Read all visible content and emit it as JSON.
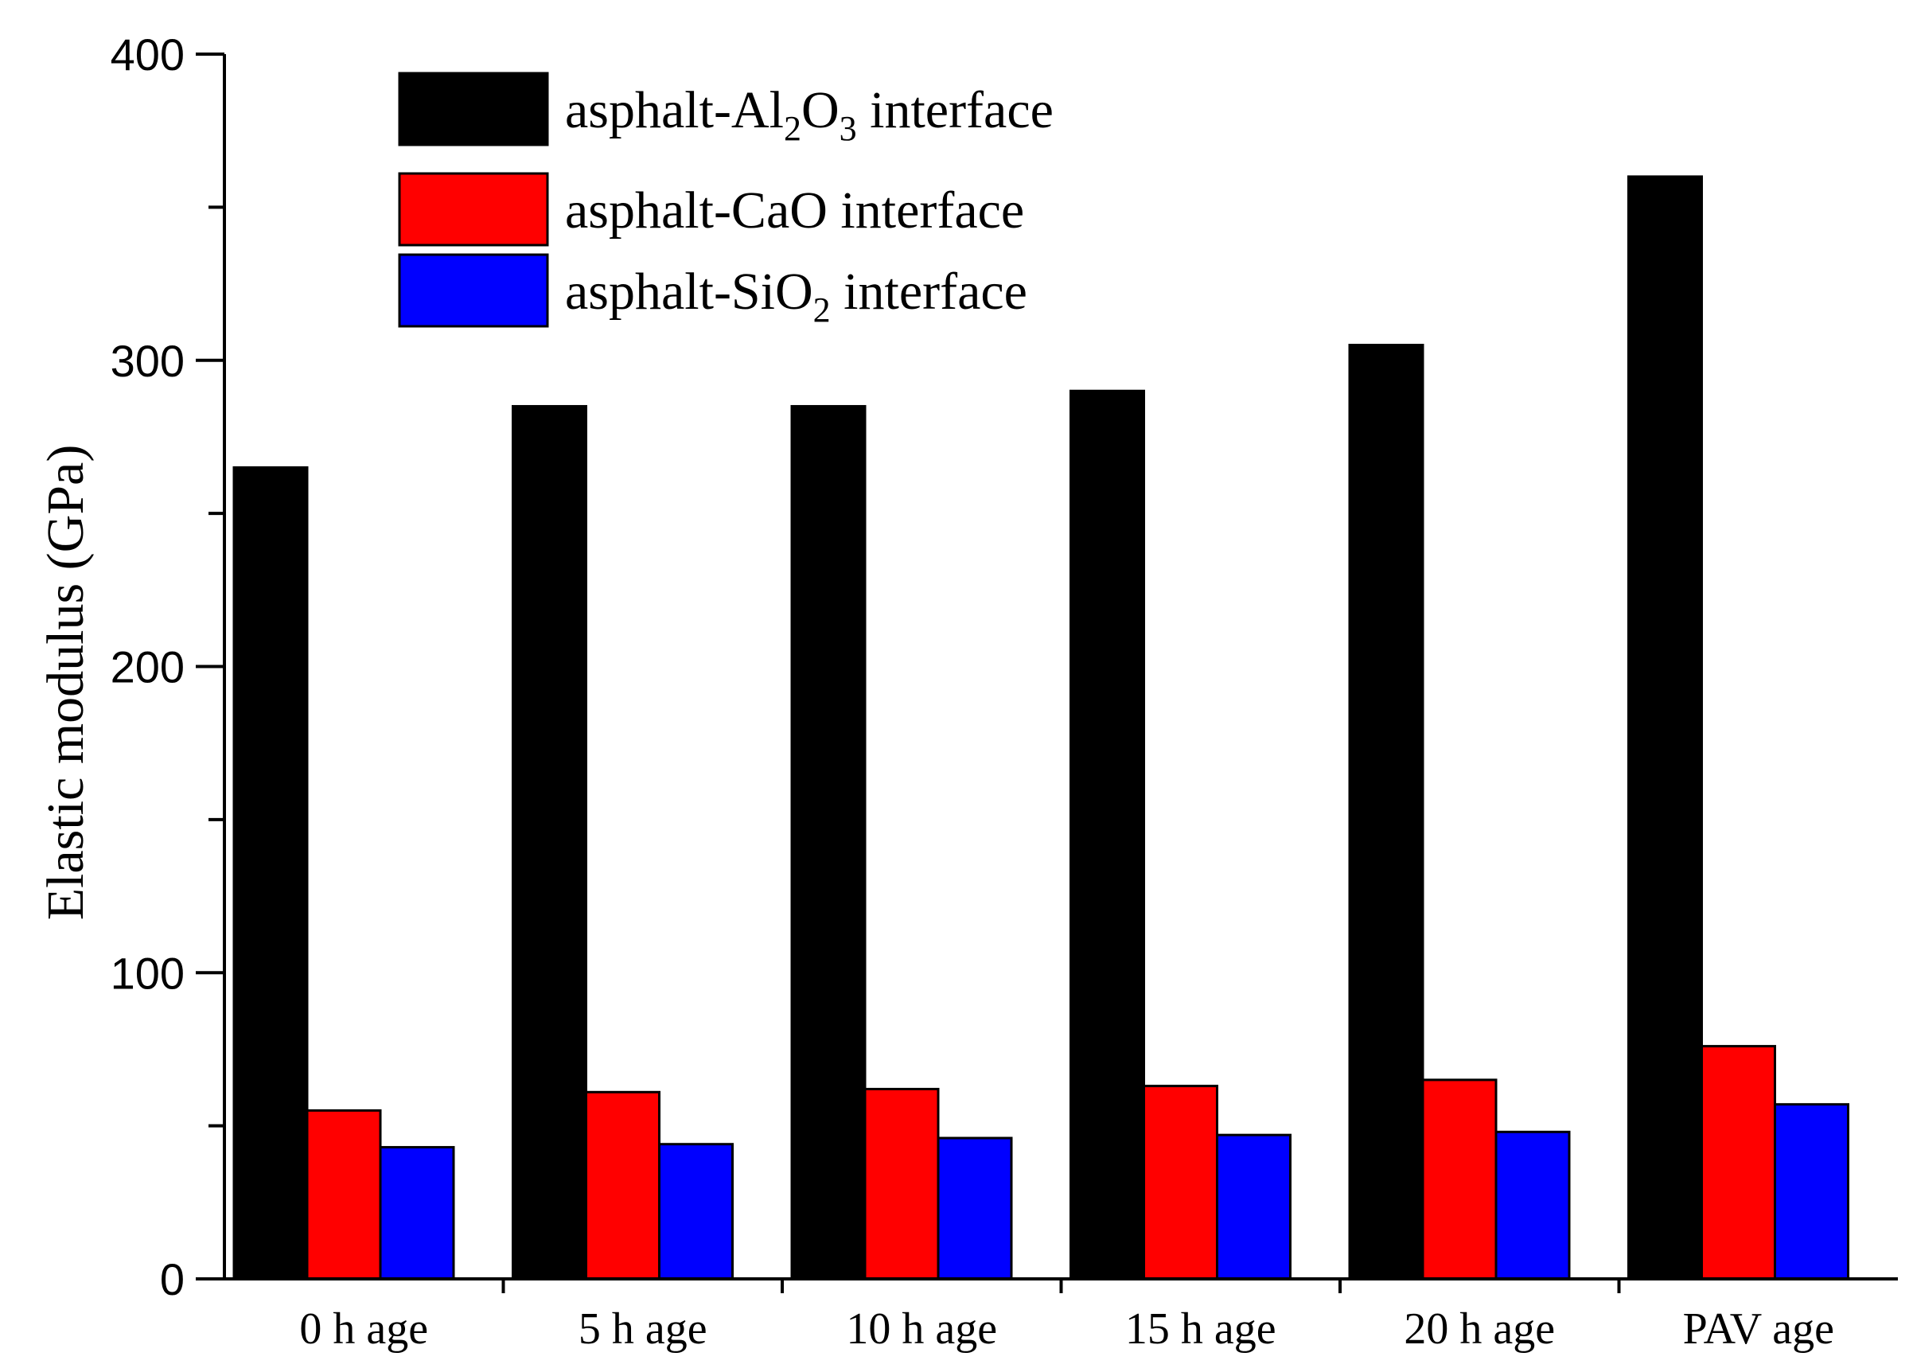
{
  "chart_data": {
    "type": "bar",
    "title": "",
    "xlabel": "",
    "ylabel": "Elastic modulus (GPa)",
    "ylim": [
      0,
      400
    ],
    "yticks": [
      0,
      100,
      200,
      300,
      400
    ],
    "categories": [
      "0 h age",
      "5 h age",
      "10 h age",
      "15 h age",
      "20 h age",
      "PAV age"
    ],
    "legend_position": "top-left",
    "series": [
      {
        "name": "asphalt-Al2O3 interface",
        "legend_parts": [
          {
            "text": "asphalt-Al",
            "sub": false
          },
          {
            "text": "2",
            "sub": true
          },
          {
            "text": "O",
            "sub": false
          },
          {
            "text": "3",
            "sub": true
          },
          {
            "text": " interface",
            "sub": false
          }
        ],
        "color": "#000000",
        "values": [
          265,
          285,
          285,
          290,
          305,
          360
        ]
      },
      {
        "name": "asphalt-CaO interface",
        "legend_parts": [
          {
            "text": "asphalt-CaO interface",
            "sub": false
          }
        ],
        "color": "#ff0000",
        "values": [
          55,
          61,
          62,
          63,
          65,
          76
        ]
      },
      {
        "name": "asphalt-SiO2 interface",
        "legend_parts": [
          {
            "text": "asphalt-SiO",
            "sub": false
          },
          {
            "text": "2",
            "sub": true
          },
          {
            "text": " interface",
            "sub": false
          }
        ],
        "color": "#0000ff",
        "values": [
          43,
          44,
          46,
          47,
          48,
          57
        ]
      }
    ]
  }
}
